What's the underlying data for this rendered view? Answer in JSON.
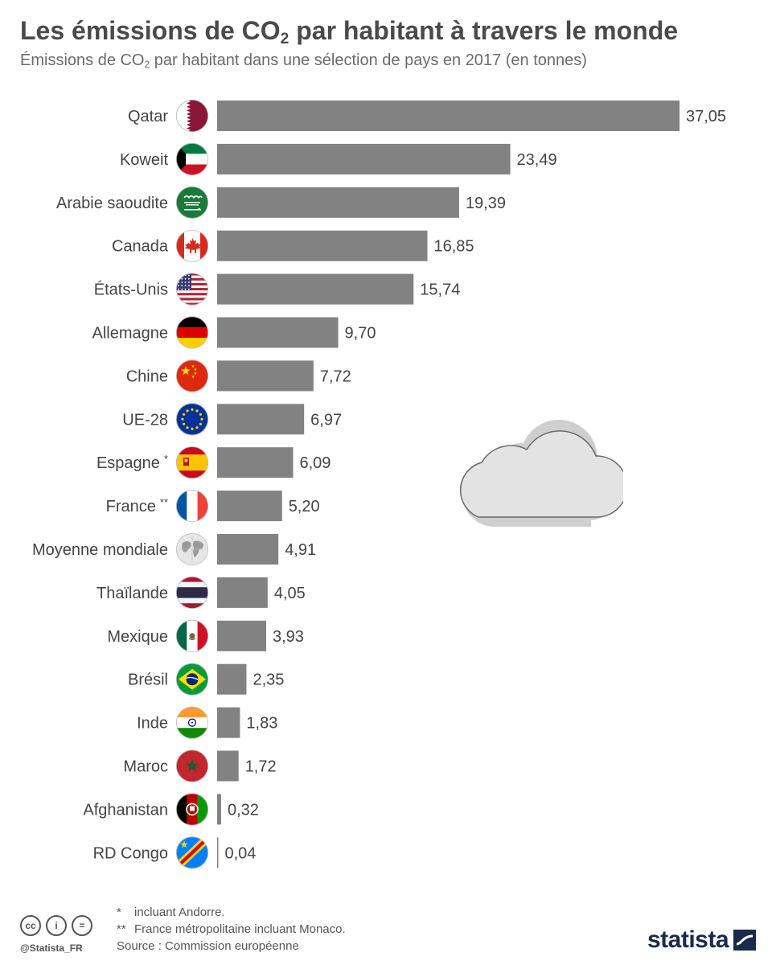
{
  "header": {
    "title_pre": "Les émissions de CO",
    "title_sub": "2",
    "title_post": " par habitant à travers le monde",
    "subtitle_pre": "Émissions de CO",
    "subtitle_sub": "2",
    "subtitle_post": " par habitant dans une sélection de pays en 2017 (en tonnes)"
  },
  "chart_data": {
    "type": "bar",
    "orientation": "horizontal",
    "title": "Les émissions de CO2 par habitant à travers le monde",
    "subtitle": "Émissions de CO2 par habitant dans une sélection de pays en 2017 (en tonnes)",
    "xlabel": "",
    "ylabel": "",
    "xlim": [
      0,
      37.05
    ],
    "grid": false,
    "bar_color": "#828282",
    "categories": [
      "Qatar",
      "Koweit",
      "Arabie saoudite",
      "Canada",
      "États-Unis",
      "Allemagne",
      "Chine",
      "UE-28",
      "Espagne",
      "France",
      "Moyenne mondiale",
      "Thaïlande",
      "Mexique",
      "Brésil",
      "Inde",
      "Maroc",
      "Afghanistan",
      "RD Congo"
    ],
    "marks": [
      "",
      "",
      "",
      "",
      "",
      "",
      "",
      "",
      "*",
      "**",
      "",
      "",
      "",
      "",
      "",
      "",
      "",
      ""
    ],
    "values": [
      37.05,
      23.49,
      19.39,
      16.85,
      15.74,
      9.7,
      7.72,
      6.97,
      6.09,
      5.2,
      4.91,
      4.05,
      3.93,
      2.35,
      1.83,
      1.72,
      0.32,
      0.04
    ],
    "value_labels": [
      "37,05",
      "23,49",
      "19,39",
      "16,85",
      "15,74",
      "9,70",
      "7,72",
      "6,97",
      "6,09",
      "5,20",
      "4,91",
      "4,05",
      "3,93",
      "2,35",
      "1,83",
      "1,72",
      "0,32",
      "0,04"
    ],
    "flag_icons": [
      "qatar-flag-icon",
      "kuwait-flag-icon",
      "saudi-arabia-flag-icon",
      "canada-flag-icon",
      "usa-flag-icon",
      "germany-flag-icon",
      "china-flag-icon",
      "eu-flag-icon",
      "spain-flag-icon",
      "france-flag-icon",
      "globe-icon",
      "thailand-flag-icon",
      "mexico-flag-icon",
      "brazil-flag-icon",
      "india-flag-icon",
      "morocco-flag-icon",
      "afghanistan-flag-icon",
      "dr-congo-flag-icon"
    ]
  },
  "footer": {
    "note1_mark": "*",
    "note1": "incluant Andorre.",
    "note2_mark": "**",
    "note2": "France métropolitaine incluant Monaco.",
    "source": "Source : Commission européenne",
    "handle": "@Statista_FR",
    "cc_icons": [
      "cc-icon",
      "by-icon",
      "nd-icon"
    ],
    "cc_glyphs": [
      "cc",
      "i",
      "="
    ],
    "logo_text": "statista"
  }
}
